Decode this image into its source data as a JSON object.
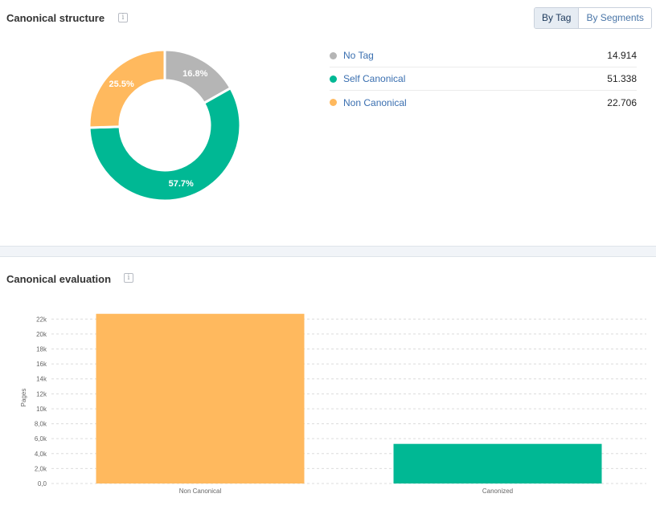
{
  "structure": {
    "title": "Canonical structure",
    "info_glyph": "i",
    "toggle": {
      "by_tag": "By Tag",
      "by_segments": "By Segments",
      "active": "by_tag"
    },
    "legend": [
      {
        "label": "No Tag",
        "value": "14.914",
        "color": "#b5b5b5"
      },
      {
        "label": "Self Canonical",
        "value": "51.338",
        "color": "#00b894"
      },
      {
        "label": "Non Canonical",
        "value": "22.706",
        "color": "#ffb95e"
      }
    ]
  },
  "evaluation": {
    "title": "Canonical evaluation",
    "info_glyph": "i"
  },
  "chart_data": [
    {
      "type": "pie",
      "style": "donut",
      "slices": [
        {
          "label": "No Tag",
          "value": 16.8,
          "display": "16.8%",
          "color": "#b5b5b5"
        },
        {
          "label": "Self Canonical",
          "value": 57.7,
          "display": "57.7%",
          "color": "#00b894"
        },
        {
          "label": "Non Canonical",
          "value": 25.5,
          "display": "25.5%",
          "color": "#ffb95e"
        }
      ]
    },
    {
      "type": "bar",
      "categories": [
        "Non Canonical",
        "Canonized"
      ],
      "values": [
        22706,
        5300
      ],
      "colors": [
        "#ffb95e",
        "#00b894"
      ],
      "ylabel": "Pages",
      "ylim": [
        0,
        23000
      ],
      "yticks": [
        0,
        2000,
        4000,
        6000,
        8000,
        10000,
        12000,
        14000,
        16000,
        18000,
        20000,
        22000
      ],
      "ytick_labels": [
        "0,0",
        "2,0k",
        "4,0k",
        "6,0k",
        "8,0k",
        "10k",
        "12k",
        "14k",
        "16k",
        "18k",
        "20k",
        "22k"
      ],
      "grid": true
    }
  ]
}
